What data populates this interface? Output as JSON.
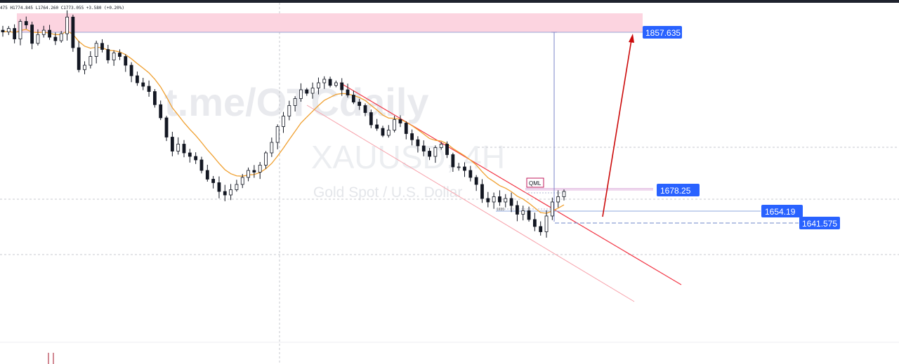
{
  "window": {
    "ohlc_readout": "475  H1774.845  L1764.260  C1773.055  +3.580 (+0.20%)"
  },
  "watermark": {
    "line1": "t.me/OTCdaily",
    "line2": "XAUUSD, 4H",
    "line3": "Gold Spot / U.S. Dollar"
  },
  "colors": {
    "candle": "#131722",
    "ema": "#f0a030",
    "zone": "#fcd4e0",
    "channel": "#f23645",
    "tag_bg": "#2962ff",
    "tag_text": "#ffffff",
    "arrow": "#cc0a0a",
    "grid": "#b2b5be"
  },
  "chart_data": {
    "type": "candlestick",
    "series": [
      {
        "name": "",
        "values": [
          1858,
          1862,
          1850,
          1870,
          1866,
          1845,
          1855,
          1860,
          1852,
          1848,
          1856,
          1875,
          1840,
          1815,
          1820,
          1830,
          1845,
          1838,
          1826,
          1834,
          1830,
          1820,
          1808,
          1800,
          1796,
          1790,
          1775,
          1760,
          1738,
          1722,
          1730,
          1720,
          1716,
          1712,
          1700,
          1690,
          1686,
          1676,
          1672,
          1678,
          1684,
          1692,
          1700,
          1698,
          1706,
          1720,
          1732,
          1750,
          1762,
          1774,
          1782,
          1792,
          1788,
          1794,
          1800,
          1804,
          1797,
          1800,
          1792,
          1786,
          1778,
          1774,
          1766,
          1752,
          1748,
          1740,
          1746,
          1758,
          1754,
          1742,
          1735,
          1728,
          1722,
          1716,
          1726,
          1730,
          1718,
          1704,
          1704,
          1700,
          1692,
          1684,
          1668,
          1664,
          1670,
          1664,
          1668,
          1660,
          1650,
          1654,
          1644,
          1636,
          1630,
          1648,
          1664,
          1670,
          1676
        ]
      }
    ],
    "price_levels": [
      1857.635,
      1678.25,
      1654.19,
      1641.575
    ],
    "annotations": [
      "QML",
      "1655"
    ],
    "ylim": [
      1530,
      1880
    ],
    "legend": "none"
  }
}
